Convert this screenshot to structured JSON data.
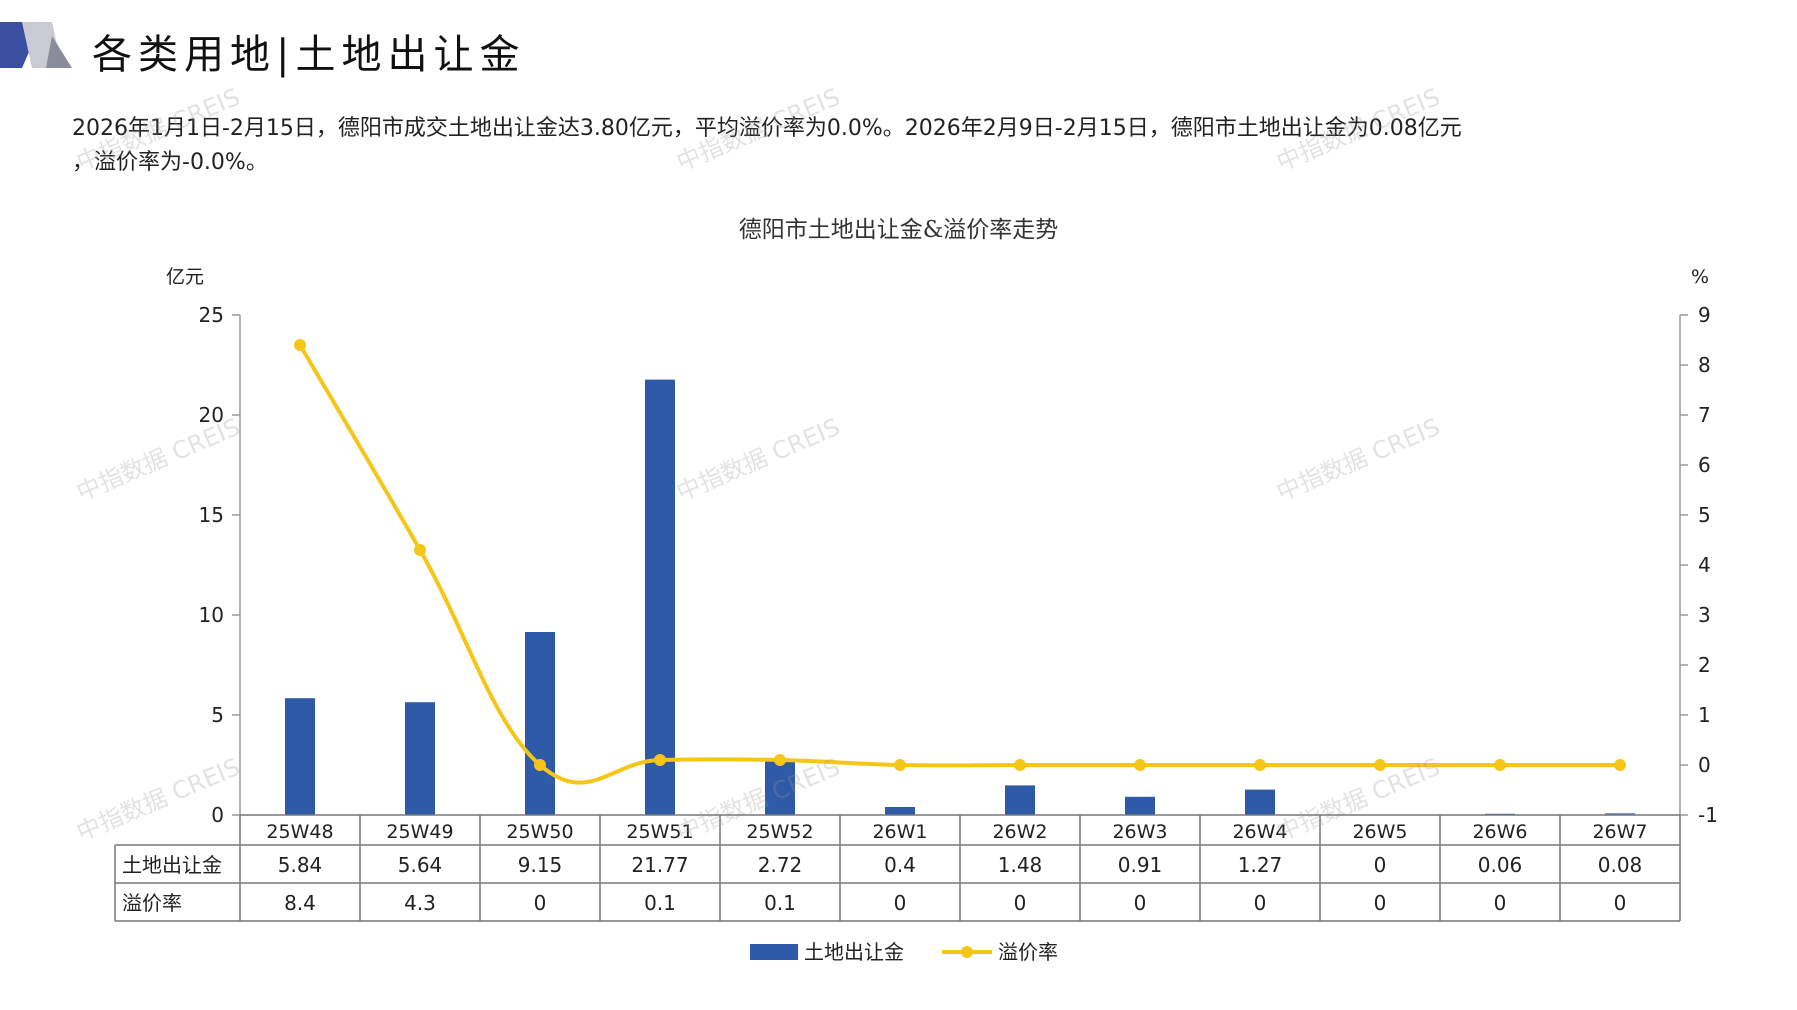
{
  "page": {
    "title": "各类用地|土地出让金",
    "summary_line1": "2026年1月1日-2月15日，德阳市成交土地出让金达3.80亿元，平均溢价率为0.0%。2026年2月9日-2月15日，德阳市土地出让金为0.08亿元",
    "summary_line2": "，溢价率为-0.0%。",
    "watermark": "中指数据 CREIS"
  },
  "colors": {
    "bar": "#2E5AA8",
    "line": "#F5C518",
    "logo_dark": "#3A4FA0",
    "logo_gray": "#B8B8C0"
  },
  "chart_data": {
    "type": "bar",
    "title": "德阳市土地出让金&溢价率走势",
    "categories": [
      "25W48",
      "25W49",
      "25W50",
      "25W51",
      "25W52",
      "26W1",
      "26W2",
      "26W3",
      "26W4",
      "26W5",
      "26W6",
      "26W7"
    ],
    "series": [
      {
        "name": "土地出让金",
        "type": "bar",
        "axis": "left",
        "values": [
          5.84,
          5.64,
          9.15,
          21.77,
          2.72,
          0.4,
          1.48,
          0.91,
          1.27,
          0,
          0.06,
          0.08
        ],
        "labels": [
          "5.84",
          "5.64",
          "9.15",
          "21.77",
          "2.72",
          "0.4",
          "1.48",
          "0.91",
          "1.27",
          "0",
          "0.06",
          "0.08"
        ]
      },
      {
        "name": "溢价率",
        "type": "line",
        "axis": "right",
        "smooth": true,
        "values": [
          8.4,
          4.3,
          0,
          0.1,
          0.1,
          0,
          0,
          0,
          0,
          0,
          0,
          0
        ],
        "labels": [
          "8.4",
          "4.3",
          "0",
          "0.1",
          "0.1",
          "0",
          "0",
          "0",
          "0",
          "0",
          "0",
          "0"
        ]
      }
    ],
    "left_axis": {
      "unit": "亿元",
      "ylim": [
        0,
        25
      ],
      "ticks": [
        "0",
        "5",
        "10",
        "15",
        "20",
        "25"
      ]
    },
    "right_axis": {
      "unit": "%",
      "ylim": [
        -1,
        9
      ],
      "ticks": [
        "-1",
        "0",
        "1",
        "2",
        "3",
        "4",
        "5",
        "6",
        "7",
        "8",
        "9"
      ]
    },
    "data_table": true,
    "legend_position": "bottom",
    "grid": false
  }
}
